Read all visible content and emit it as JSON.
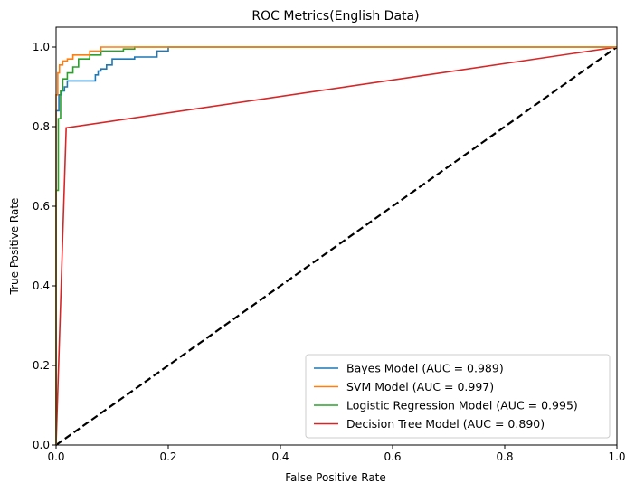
{
  "chart_data": {
    "type": "line",
    "title": "ROC Metrics(English Data)",
    "xlabel": "False Positive Rate",
    "ylabel": "True Positive Rate",
    "xlim": [
      0.0,
      1.0
    ],
    "ylim": [
      0.0,
      1.05
    ],
    "xticks": [
      "0.0",
      "0.2",
      "0.4",
      "0.6",
      "0.8",
      "1.0"
    ],
    "yticks": [
      "0.0",
      "0.2",
      "0.4",
      "0.6",
      "0.8",
      "1.0"
    ],
    "legend_position": "lower-right",
    "series": [
      {
        "name": "Bayes Model (AUC = 0.989)",
        "color": "#1f77b4",
        "x": [
          0,
          0,
          0.005,
          0.005,
          0.01,
          0.01,
          0.015,
          0.015,
          0.02,
          0.02,
          0.07,
          0.07,
          0.075,
          0.075,
          0.08,
          0.08,
          0.09,
          0.09,
          0.1,
          0.1,
          0.14,
          0.14,
          0.18,
          0.18,
          0.2,
          0.2,
          0.3,
          1.0
        ],
        "y": [
          0,
          0.84,
          0.84,
          0.88,
          0.88,
          0.89,
          0.89,
          0.9,
          0.9,
          0.915,
          0.915,
          0.93,
          0.93,
          0.94,
          0.94,
          0.945,
          0.945,
          0.955,
          0.955,
          0.97,
          0.97,
          0.975,
          0.975,
          0.99,
          0.99,
          1.0,
          1.0,
          1.0
        ]
      },
      {
        "name": "SVM Model (AUC = 0.997)",
        "color": "#ff7f0e",
        "x": [
          0,
          0,
          0.003,
          0.003,
          0.006,
          0.006,
          0.012,
          0.012,
          0.02,
          0.02,
          0.03,
          0.03,
          0.06,
          0.06,
          0.08,
          0.08,
          0.14,
          0.14,
          1.0
        ],
        "y": [
          0,
          0.88,
          0.88,
          0.935,
          0.935,
          0.955,
          0.955,
          0.965,
          0.965,
          0.97,
          0.97,
          0.98,
          0.98,
          0.99,
          0.99,
          1.0,
          1.0,
          1.0,
          1.0
        ]
      },
      {
        "name": "Logistic Regression Model (AUC = 0.995)",
        "color": "#2ca02c",
        "x": [
          0,
          0,
          0.004,
          0.004,
          0.008,
          0.008,
          0.012,
          0.012,
          0.02,
          0.02,
          0.03,
          0.03,
          0.04,
          0.04,
          0.06,
          0.06,
          0.08,
          0.08,
          0.12,
          0.12,
          0.14,
          0.14,
          1.0
        ],
        "y": [
          0,
          0.64,
          0.64,
          0.82,
          0.82,
          0.89,
          0.89,
          0.92,
          0.92,
          0.935,
          0.935,
          0.95,
          0.95,
          0.97,
          0.97,
          0.98,
          0.98,
          0.99,
          0.99,
          0.995,
          0.995,
          1.0,
          1.0
        ]
      },
      {
        "name": "Decision Tree Model (AUC = 0.890)",
        "color": "#d62728",
        "x": [
          0,
          0.018,
          1.0
        ],
        "y": [
          0,
          0.797,
          1.0
        ]
      }
    ],
    "reference_line": {
      "x": [
        0,
        1
      ],
      "y": [
        0,
        1
      ],
      "color": "#000000",
      "style": "dashed"
    }
  }
}
